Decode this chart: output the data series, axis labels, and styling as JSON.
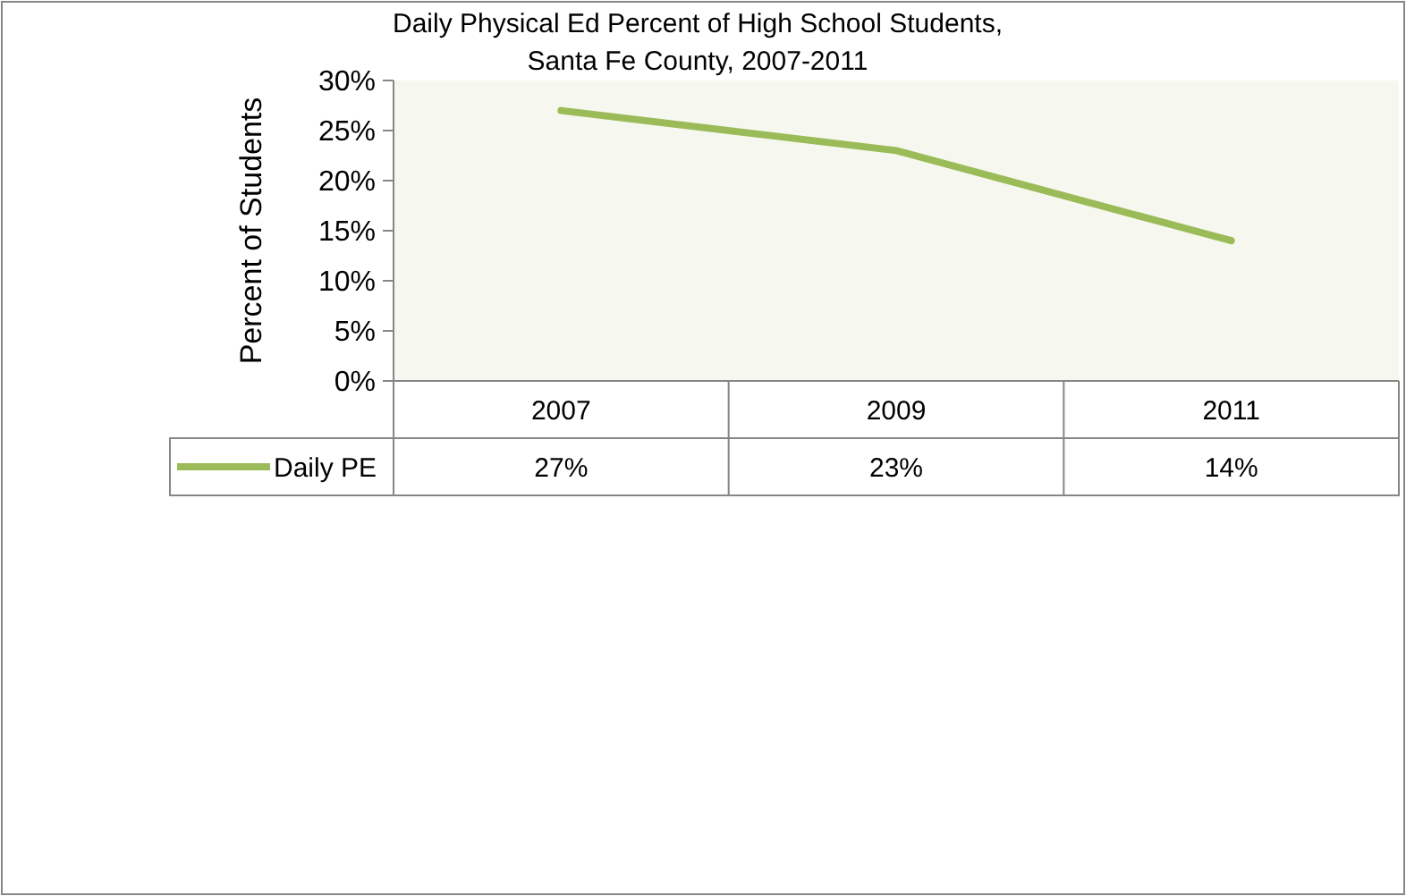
{
  "chart_data": {
    "type": "line",
    "title": "Daily Physical Ed Percent of High School Students,\nSanta Fe County, 2007-2011",
    "ylabel": "Percent of Students",
    "categories": [
      "2007",
      "2009",
      "2011"
    ],
    "series": [
      {
        "name": "Daily PE",
        "color": "#9bbb59",
        "values": [
          27,
          23,
          14
        ],
        "value_labels": [
          "27%",
          "23%",
          "14%"
        ]
      }
    ],
    "ylim": [
      0,
      30
    ],
    "yticks": [
      {
        "value": 0,
        "label": "0%"
      },
      {
        "value": 5,
        "label": "5%"
      },
      {
        "value": 10,
        "label": "10%"
      },
      {
        "value": 15,
        "label": "15%"
      },
      {
        "value": 20,
        "label": "20%"
      },
      {
        "value": 25,
        "label": "25%"
      },
      {
        "value": 30,
        "label": "30%"
      }
    ],
    "grid": false,
    "legend": "bottom",
    "marker": "none",
    "line_style": "solid"
  }
}
